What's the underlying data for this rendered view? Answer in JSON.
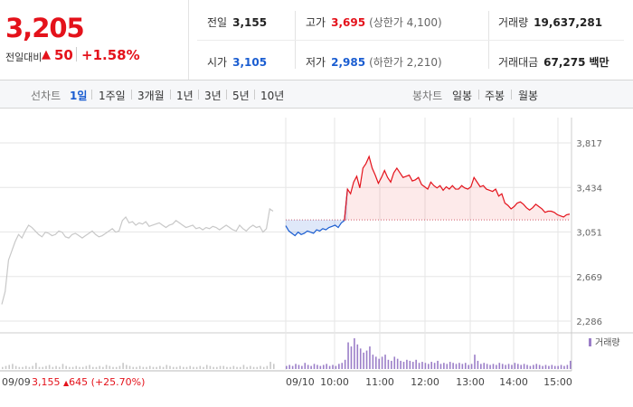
{
  "price": {
    "current": "3,205",
    "change_label": "전일대비",
    "change_arrow": "▲",
    "change_value": "50",
    "change_rate": "+1.58%"
  },
  "stats": {
    "prev_close": {
      "label": "전일",
      "value": "3,155"
    },
    "open": {
      "label": "시가",
      "value": "3,105"
    },
    "high": {
      "label": "고가",
      "value": "3,695",
      "sub": "(상한가 4,100)"
    },
    "low": {
      "label": "저가",
      "value": "2,985",
      "sub": "(하한가 2,210)"
    },
    "volume": {
      "label": "거래량",
      "value": "19,637,281"
    },
    "amount": {
      "label": "거래대금",
      "value": "67,275",
      "unit": "백만"
    }
  },
  "colors": {
    "up": "#e4121b",
    "down": "#1a5dd1",
    "grid": "#e6e6e6"
  },
  "toolbar": {
    "line_chart_label": "선차트",
    "line_periods": [
      "1일",
      "1주일",
      "3개월",
      "1년",
      "3년",
      "5년",
      "10년"
    ],
    "active_period": "1일",
    "candle_chart_label": "봉차트",
    "candle_periods": [
      "일봉",
      "주봉",
      "월봉"
    ]
  },
  "chart_data": {
    "type": "line",
    "y_ticks": [
      "3,817",
      "3,434",
      "3,051",
      "2,669",
      "2,286"
    ],
    "ylim": [
      2286,
      3817
    ],
    "reference_price": 3155,
    "volume_legend": "거래량",
    "prev_day": {
      "date": "09/09",
      "summary": "3,155",
      "summary_arrow": "▲",
      "summary_change": "645 (+25.70%)",
      "series_name": "previous day"
    },
    "today": {
      "date": "09/10",
      "time_ticks": [
        "10:00",
        "11:00",
        "12:00",
        "13:00",
        "14:00",
        "15:00"
      ]
    },
    "prev_series": [
      2430,
      2540,
      2810,
      2890,
      2970,
      3030,
      3000,
      3060,
      3110,
      3090,
      3060,
      3030,
      3010,
      3050,
      3040,
      3020,
      3030,
      3060,
      3050,
      3010,
      3000,
      3030,
      3040,
      3020,
      3000,
      3020,
      3040,
      3060,
      3030,
      3010,
      3020,
      3040,
      3060,
      3080,
      3050,
      3060,
      3150,
      3180,
      3130,
      3140,
      3110,
      3130,
      3120,
      3140,
      3100,
      3110,
      3120,
      3130,
      3110,
      3090,
      3110,
      3120,
      3150,
      3130,
      3110,
      3090,
      3100,
      3110,
      3080,
      3090,
      3070,
      3090,
      3080,
      3100,
      3090,
      3070,
      3090,
      3110,
      3090,
      3070,
      3060,
      3110,
      3080,
      3060,
      3090,
      3110,
      3090,
      3100,
      3050,
      3080,
      3250,
      3230
    ],
    "today_series": [
      3105,
      3060,
      3040,
      3020,
      3050,
      3030,
      3040,
      3060,
      3050,
      3040,
      3070,
      3060,
      3080,
      3070,
      3090,
      3100,
      3110,
      3090,
      3130,
      3150,
      3420,
      3380,
      3480,
      3530,
      3430,
      3600,
      3640,
      3700,
      3600,
      3540,
      3470,
      3520,
      3580,
      3520,
      3480,
      3560,
      3600,
      3560,
      3520,
      3530,
      3540,
      3490,
      3500,
      3520,
      3460,
      3440,
      3420,
      3480,
      3450,
      3430,
      3450,
      3410,
      3440,
      3420,
      3450,
      3420,
      3420,
      3450,
      3430,
      3420,
      3440,
      3520,
      3480,
      3440,
      3450,
      3420,
      3410,
      3400,
      3420,
      3360,
      3380,
      3300,
      3280,
      3250,
      3270,
      3300,
      3310,
      3290,
      3260,
      3240,
      3260,
      3290,
      3270,
      3250,
      3220,
      3230,
      3230,
      3220,
      3200,
      3190,
      3180,
      3200,
      3205
    ],
    "prev_volume": [
      2,
      3,
      4,
      5,
      3,
      2,
      2,
      3,
      2,
      3,
      6,
      2,
      2,
      3,
      4,
      2,
      3,
      2,
      5,
      3,
      2,
      2,
      3,
      2,
      2,
      3,
      4,
      2,
      2,
      3,
      2,
      4,
      3,
      2,
      2,
      3,
      6,
      4,
      3,
      2,
      2,
      3,
      2,
      2,
      3,
      2,
      2,
      3,
      2,
      4,
      3,
      2,
      2,
      3,
      2,
      2,
      3,
      2,
      2,
      3,
      2,
      4,
      3,
      2,
      2,
      3,
      3,
      2,
      2,
      3,
      2,
      2,
      4,
      2,
      3,
      2,
      2,
      3,
      2,
      3,
      7,
      5
    ],
    "today_volume": [
      3,
      4,
      3,
      5,
      4,
      3,
      6,
      4,
      3,
      5,
      4,
      3,
      4,
      5,
      3,
      4,
      3,
      5,
      6,
      9,
      26,
      22,
      30,
      24,
      20,
      16,
      18,
      22,
      14,
      12,
      10,
      12,
      14,
      9,
      8,
      12,
      10,
      8,
      7,
      9,
      8,
      7,
      9,
      6,
      7,
      6,
      5,
      7,
      6,
      8,
      5,
      6,
      5,
      7,
      6,
      5,
      6,
      5,
      6,
      4,
      5,
      14,
      8,
      5,
      6,
      5,
      4,
      5,
      4,
      6,
      5,
      4,
      5,
      4,
      6,
      5,
      4,
      5,
      4,
      3,
      4,
      5,
      4,
      3,
      4,
      3,
      4,
      3,
      3,
      4,
      3,
      4,
      8
    ]
  }
}
